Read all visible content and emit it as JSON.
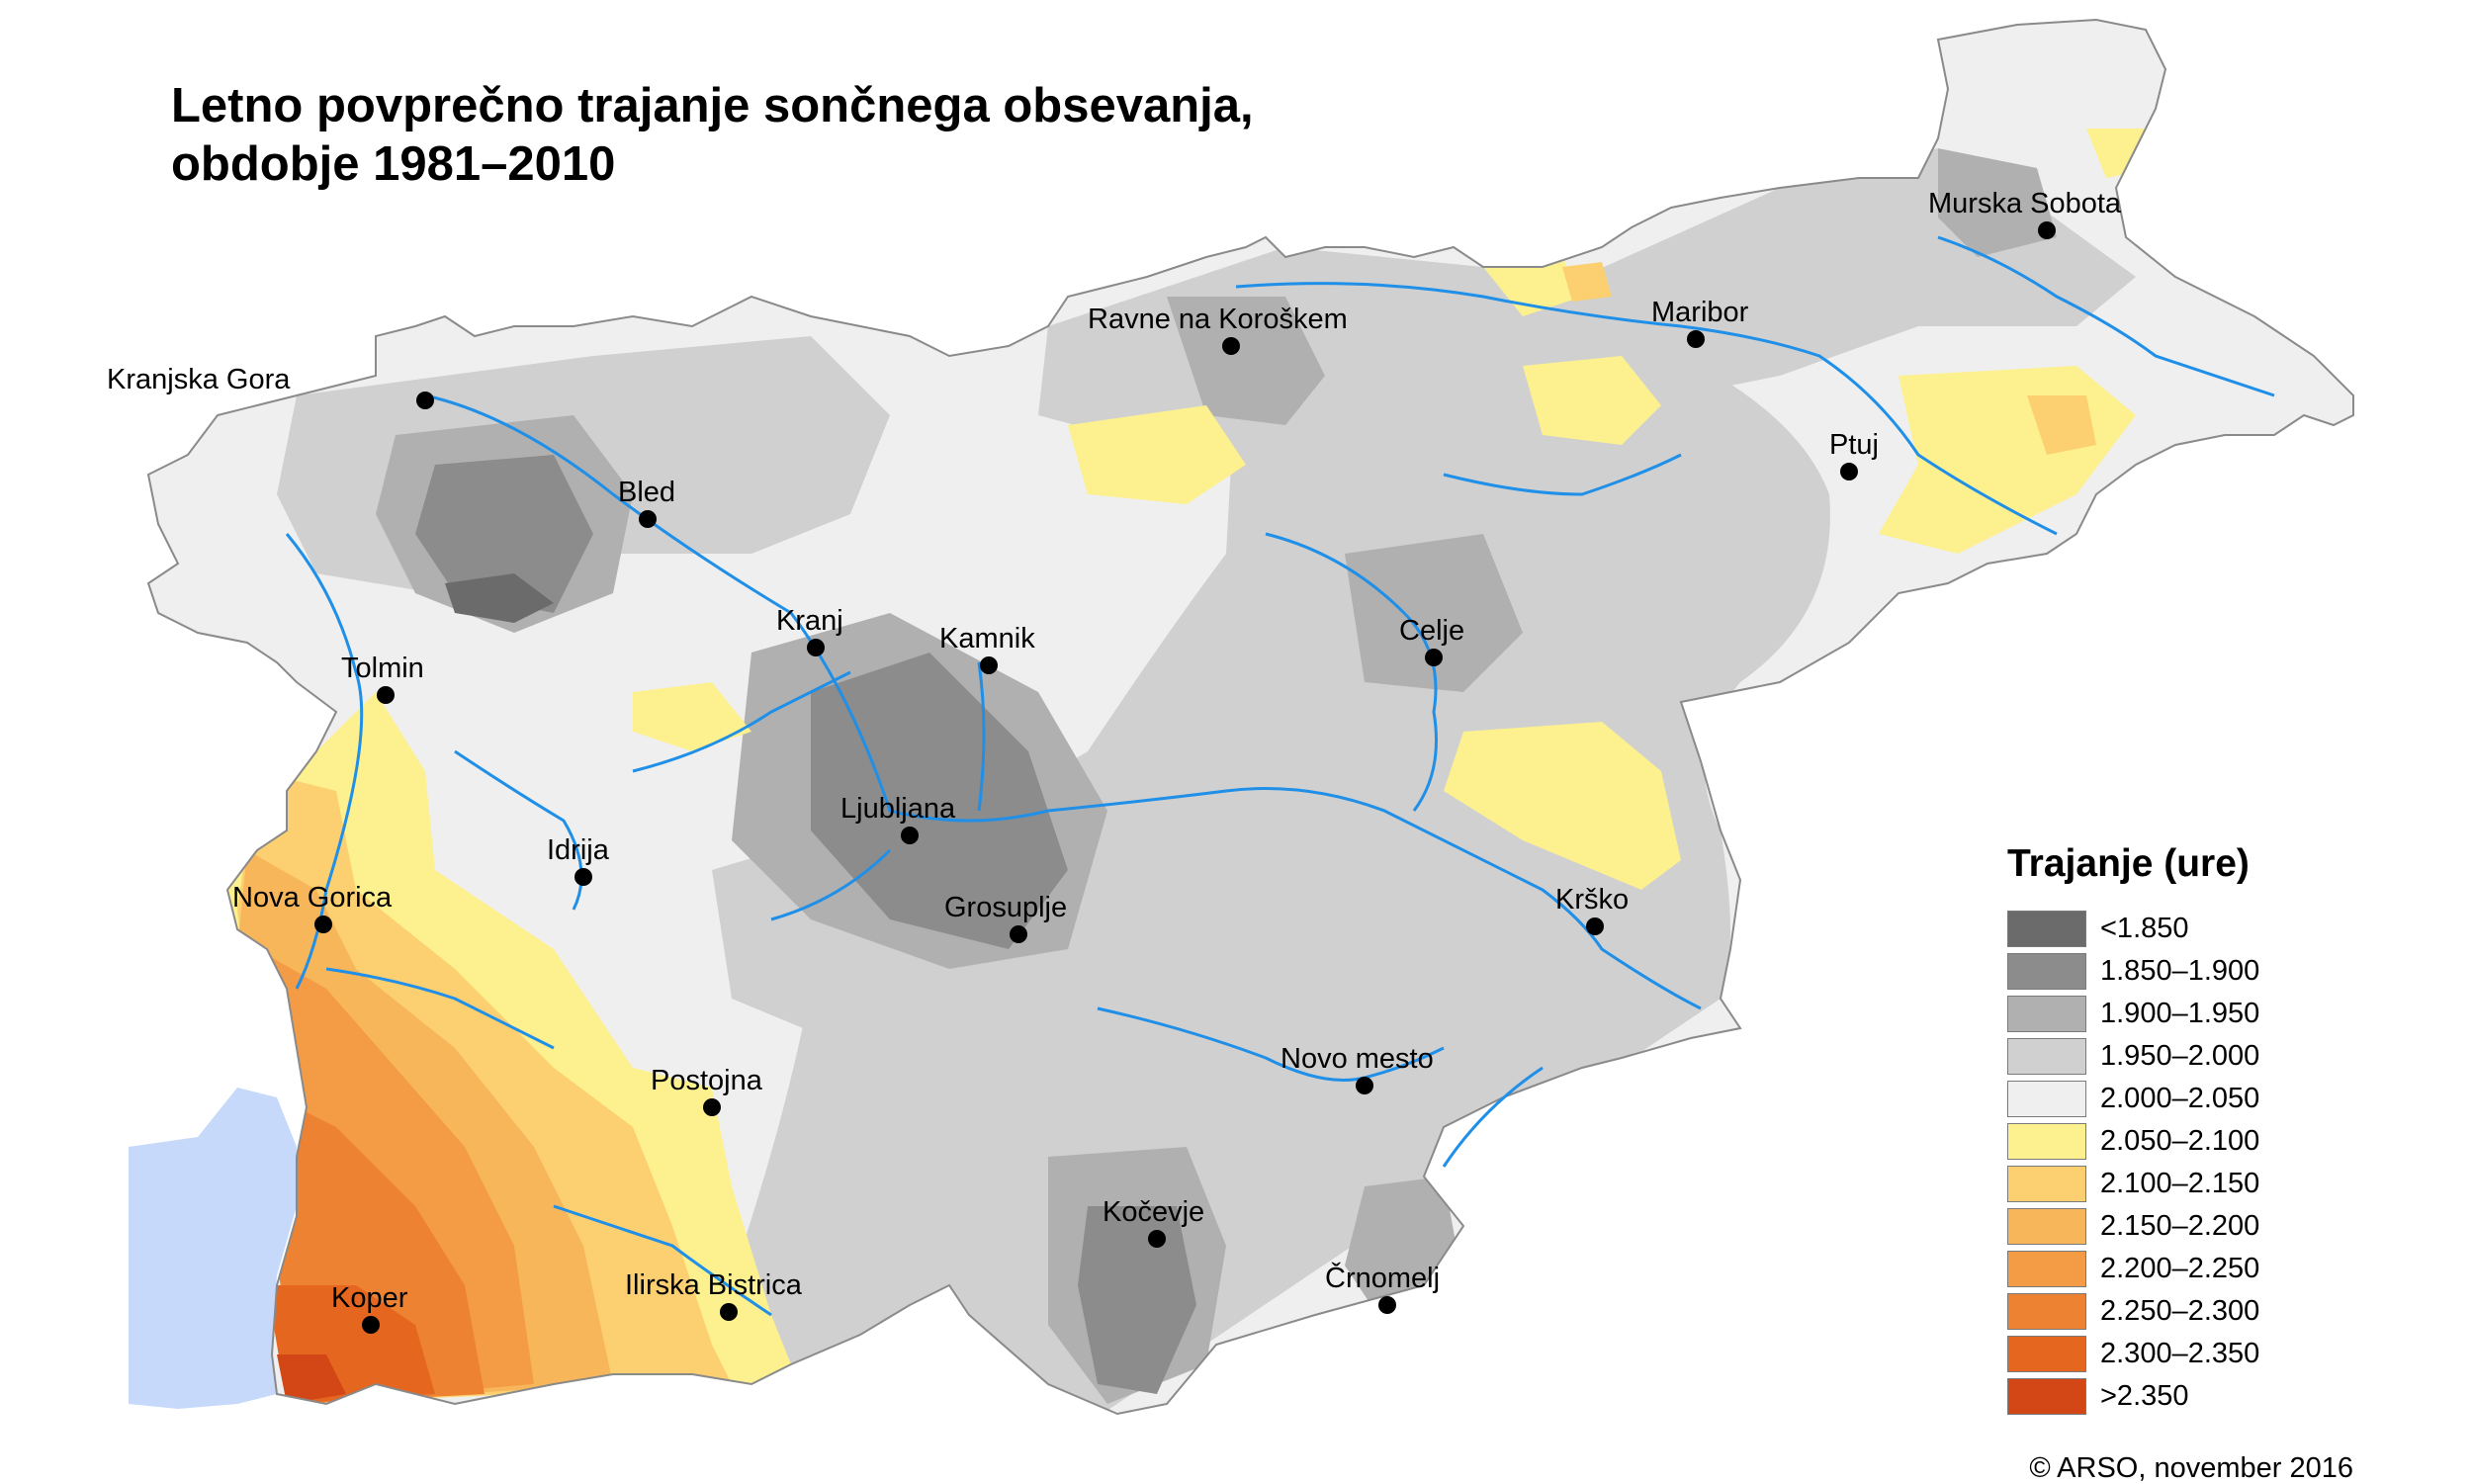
{
  "title": {
    "line1": "Letno povprečno trajanje sončnega obsevanja,",
    "line2": "obdobje 1981–2010"
  },
  "legend": {
    "title": "Trajanje (ure)",
    "classes": [
      {
        "label": "<1.850",
        "color": "#6b6b6b"
      },
      {
        "label": "1.850–1.900",
        "color": "#8c8c8c"
      },
      {
        "label": "1.900–1.950",
        "color": "#b0b0b0"
      },
      {
        "label": "1.950–2.000",
        "color": "#d0d0d0"
      },
      {
        "label": "2.000–2.050",
        "color": "#efefef"
      },
      {
        "label": "2.050–2.100",
        "color": "#fdf08e"
      },
      {
        "label": "2.100–2.150",
        "color": "#fcd071"
      },
      {
        "label": "2.150–2.200",
        "color": "#f8b65a"
      },
      {
        "label": "2.200–2.250",
        "color": "#f39c45"
      },
      {
        "label": "2.250–2.300",
        "color": "#ee8233"
      },
      {
        "label": "2.300–2.350",
        "color": "#e5661f"
      },
      {
        "label": ">2.350",
        "color": "#d24715"
      }
    ]
  },
  "cities": [
    "Kranjska Gora",
    "Bled",
    "Tolmin",
    "Kranj",
    "Kamnik",
    "Ravne na Koroškem",
    "Murska Sobota",
    "Maribor",
    "Ptuj",
    "Celje",
    "Ljubljana",
    "Idrija",
    "Nova Gorica",
    "Grosuplje",
    "Krško",
    "Novo mesto",
    "Postojna",
    "Kočevje",
    "Črnomelj",
    "Ilirska Bistrica",
    "Koper"
  ],
  "colors": {
    "sea": "#c6d9fb",
    "river": "#1f8fe8",
    "border": "#8a8a8a"
  },
  "credit": "© ARSO, november 2016"
}
